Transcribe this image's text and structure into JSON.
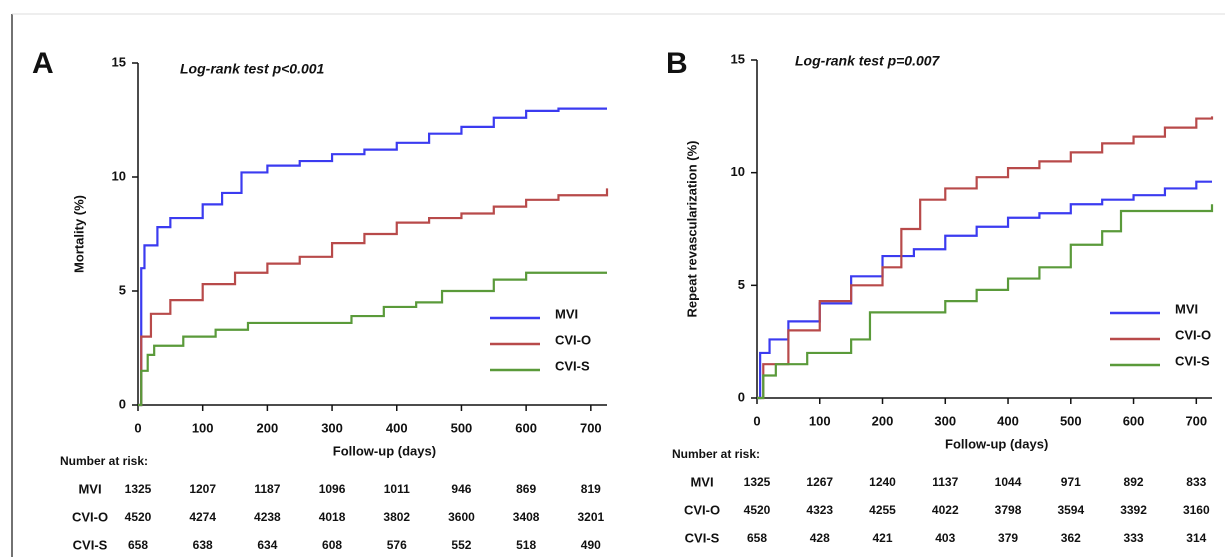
{
  "chart_data": [
    {
      "type": "line",
      "step": true,
      "panel_label": "A",
      "annotation": "Log-rank test p<0.001",
      "ylabel": "Mortality (%)",
      "xlabel": "Follow-up (days)",
      "xlim": [
        0,
        725
      ],
      "ylim": [
        0,
        15
      ],
      "xticks": [
        0,
        100,
        200,
        300,
        400,
        500,
        600,
        700
      ],
      "yticks": [
        0,
        5,
        10,
        15
      ],
      "series": [
        {
          "name": "MVI",
          "color": "#3b3bf0",
          "x": [
            0,
            5,
            10,
            30,
            50,
            100,
            130,
            160,
            200,
            250,
            300,
            350,
            400,
            450,
            500,
            550,
            600,
            650,
            725
          ],
          "values": [
            0,
            6,
            7,
            7.8,
            8.2,
            8.8,
            9.3,
            10.2,
            10.5,
            10.7,
            11,
            11.2,
            11.5,
            11.9,
            12.2,
            12.6,
            12.9,
            13,
            13
          ]
        },
        {
          "name": "CVI-O",
          "color": "#b84a4a",
          "x": [
            0,
            5,
            20,
            50,
            100,
            150,
            200,
            250,
            300,
            350,
            400,
            450,
            500,
            550,
            600,
            650,
            725
          ],
          "values": [
            0,
            3,
            4,
            4.6,
            5.3,
            5.8,
            6.2,
            6.5,
            7.1,
            7.5,
            8,
            8.2,
            8.4,
            8.7,
            9,
            9.2,
            9.5
          ]
        },
        {
          "name": "CVI-S",
          "color": "#5a9a3a",
          "x": [
            0,
            5,
            15,
            25,
            70,
            120,
            170,
            330,
            380,
            430,
            470,
            550,
            600,
            725
          ],
          "values": [
            0,
            1.5,
            2.2,
            2.6,
            3,
            3.3,
            3.6,
            3.9,
            4.3,
            4.5,
            5,
            5.5,
            5.8,
            5.8
          ]
        }
      ],
      "risk_table": {
        "title": "Number at risk:",
        "rows": [
          {
            "name": "MVI",
            "values": [
              1325,
              1207,
              1187,
              1096,
              1011,
              946,
              869,
              819
            ]
          },
          {
            "name": "CVI-O",
            "values": [
              4520,
              4274,
              4238,
              4018,
              3802,
              3600,
              3408,
              3201
            ]
          },
          {
            "name": "CVI-S",
            "values": [
              658,
              638,
              634,
              608,
              576,
              552,
              518,
              490
            ]
          }
        ]
      }
    },
    {
      "type": "line",
      "step": true,
      "panel_label": "B",
      "annotation": "Log-rank test p=0.007",
      "ylabel": "Repeat revascularization (%)",
      "xlabel": "Follow-up (days)",
      "xlim": [
        0,
        725
      ],
      "ylim": [
        0,
        15
      ],
      "xticks": [
        0,
        100,
        200,
        300,
        400,
        500,
        600,
        700
      ],
      "yticks": [
        0,
        5,
        10,
        15
      ],
      "series": [
        {
          "name": "MVI",
          "color": "#3b3bf0",
          "x": [
            0,
            5,
            20,
            50,
            100,
            150,
            200,
            250,
            300,
            350,
            400,
            450,
            500,
            550,
            600,
            650,
            700,
            725
          ],
          "values": [
            0,
            2,
            2.6,
            3.4,
            4.2,
            5.4,
            6.3,
            6.6,
            7.2,
            7.6,
            8,
            8.2,
            8.6,
            8.8,
            9,
            9.3,
            9.6,
            9.6
          ]
        },
        {
          "name": "CVI-O",
          "color": "#b84a4a",
          "x": [
            0,
            10,
            50,
            100,
            150,
            200,
            230,
            260,
            300,
            350,
            400,
            450,
            500,
            550,
            600,
            650,
            700,
            725
          ],
          "values": [
            0,
            1.5,
            3,
            4.3,
            5,
            5.8,
            7.5,
            8.8,
            9.3,
            9.8,
            10.2,
            10.5,
            10.9,
            11.3,
            11.6,
            12,
            12.4,
            12.5
          ]
        },
        {
          "name": "CVI-S",
          "color": "#5a9a3a",
          "x": [
            0,
            10,
            30,
            80,
            150,
            180,
            300,
            350,
            400,
            450,
            500,
            550,
            580,
            725
          ],
          "values": [
            0,
            1,
            1.5,
            2,
            2.6,
            3.8,
            4.3,
            4.8,
            5.3,
            5.8,
            6.8,
            7.4,
            8.3,
            8.6
          ]
        }
      ],
      "risk_table": {
        "title": "Number at risk:",
        "rows": [
          {
            "name": "MVI",
            "values": [
              1325,
              1267,
              1240,
              1137,
              1044,
              971,
              892,
              833
            ]
          },
          {
            "name": "CVI-O",
            "values": [
              4520,
              4323,
              4255,
              4022,
              3798,
              3594,
              3392,
              3160
            ]
          },
          {
            "name": "CVI-S",
            "values": [
              658,
              428,
              421,
              403,
              379,
              362,
              333,
              314
            ]
          }
        ]
      }
    }
  ]
}
